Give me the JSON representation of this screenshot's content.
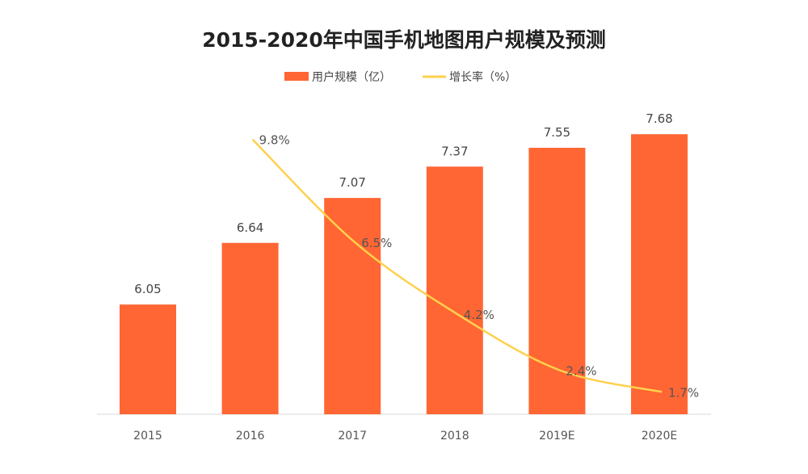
{
  "chart_data": {
    "type": "bar+line",
    "title": "2015-2020年中国手机地图用户规模及预测",
    "categories": [
      "2015",
      "2016",
      "2017",
      "2018",
      "2019E",
      "2020E"
    ],
    "series": [
      {
        "name": "用户规模（亿）",
        "type": "bar",
        "color": "#FF6633",
        "values": [
          6.05,
          6.64,
          7.07,
          7.37,
          7.55,
          7.68
        ],
        "labels": [
          "6.05",
          "6.64",
          "7.07",
          "7.37",
          "7.55",
          "7.68"
        ]
      },
      {
        "name": "增长率（%）",
        "type": "line",
        "color": "#FFD04D",
        "values": [
          null,
          9.8,
          6.5,
          4.2,
          2.4,
          1.7
        ],
        "labels": [
          "",
          "9.8%",
          "6.5%",
          "4.2%",
          "2.4%",
          "1.7%"
        ]
      }
    ],
    "ylim": [
      5,
      8
    ],
    "y2lim": [
      0,
      11
    ],
    "legend": "top-center",
    "grid": false
  }
}
